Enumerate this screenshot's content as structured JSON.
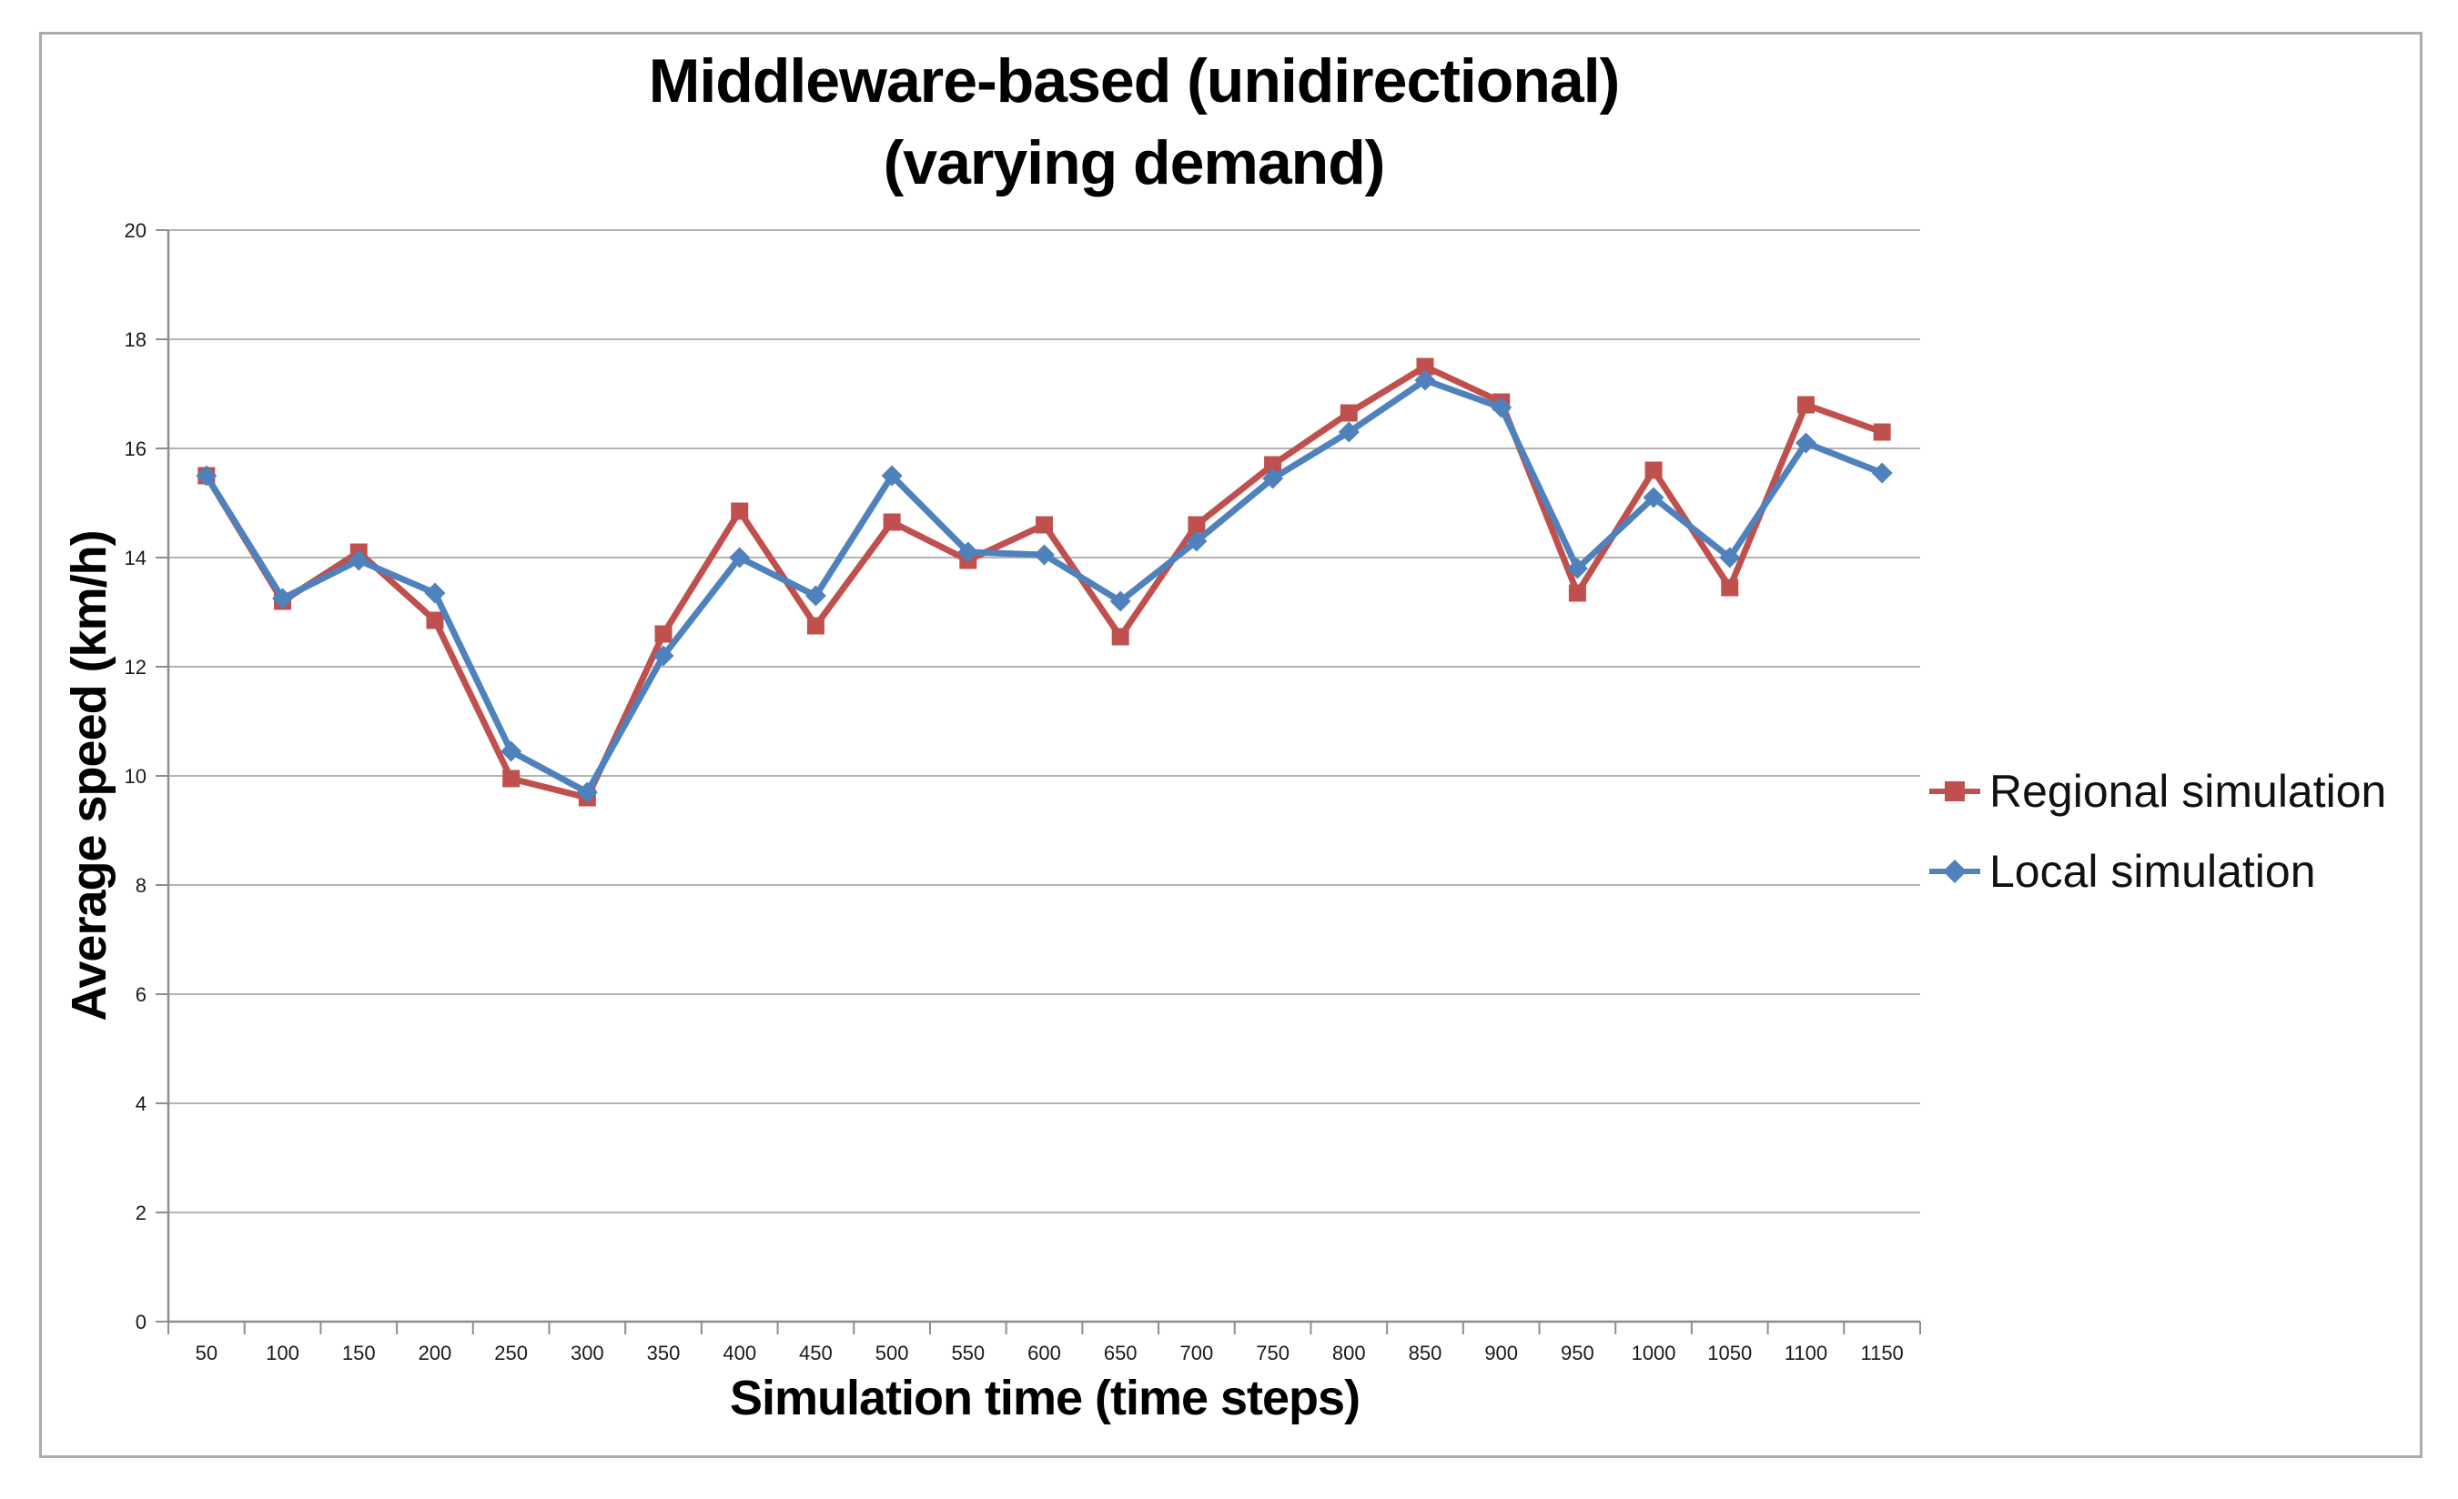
{
  "chart_data": {
    "type": "line",
    "title_lines": [
      "Middleware-based (unidirectional)",
      "(varying demand)"
    ],
    "xlabel": "Simulation time (time steps)",
    "ylabel": "Average speed (km/h)",
    "categories": [
      50,
      100,
      150,
      200,
      250,
      300,
      350,
      400,
      450,
      500,
      550,
      600,
      650,
      700,
      750,
      800,
      850,
      900,
      950,
      1000,
      1050,
      1100,
      1150
    ],
    "yticks": [
      0,
      2,
      4,
      6,
      8,
      10,
      12,
      14,
      16,
      18,
      20
    ],
    "ylim": [
      0,
      20
    ],
    "ytick_step": 2,
    "grid": true,
    "legend_position": "right",
    "series": [
      {
        "name": "Regional simulation",
        "color": "#C0504D",
        "marker": "square",
        "values": [
          15.5,
          13.2,
          14.1,
          12.85,
          9.95,
          9.6,
          12.6,
          14.85,
          12.75,
          14.65,
          13.95,
          14.6,
          12.55,
          14.6,
          15.7,
          16.65,
          17.5,
          16.85,
          13.35,
          15.6,
          13.45,
          16.8,
          16.3
        ]
      },
      {
        "name": "Local simulation",
        "color": "#4F81BD",
        "marker": "diamond",
        "values": [
          15.5,
          13.25,
          13.95,
          13.35,
          10.45,
          9.7,
          12.2,
          14.0,
          13.3,
          15.5,
          14.1,
          14.05,
          13.2,
          14.3,
          15.45,
          16.3,
          17.25,
          16.75,
          13.8,
          15.1,
          14.0,
          16.1,
          15.55
        ]
      }
    ],
    "style_colors": {
      "gridline": "#B3B3B3",
      "axis": "#8E8E8E",
      "tick_label": "#1A1A1A",
      "frame_border": "#ABABAB",
      "background": "#FFFFFF"
    }
  }
}
